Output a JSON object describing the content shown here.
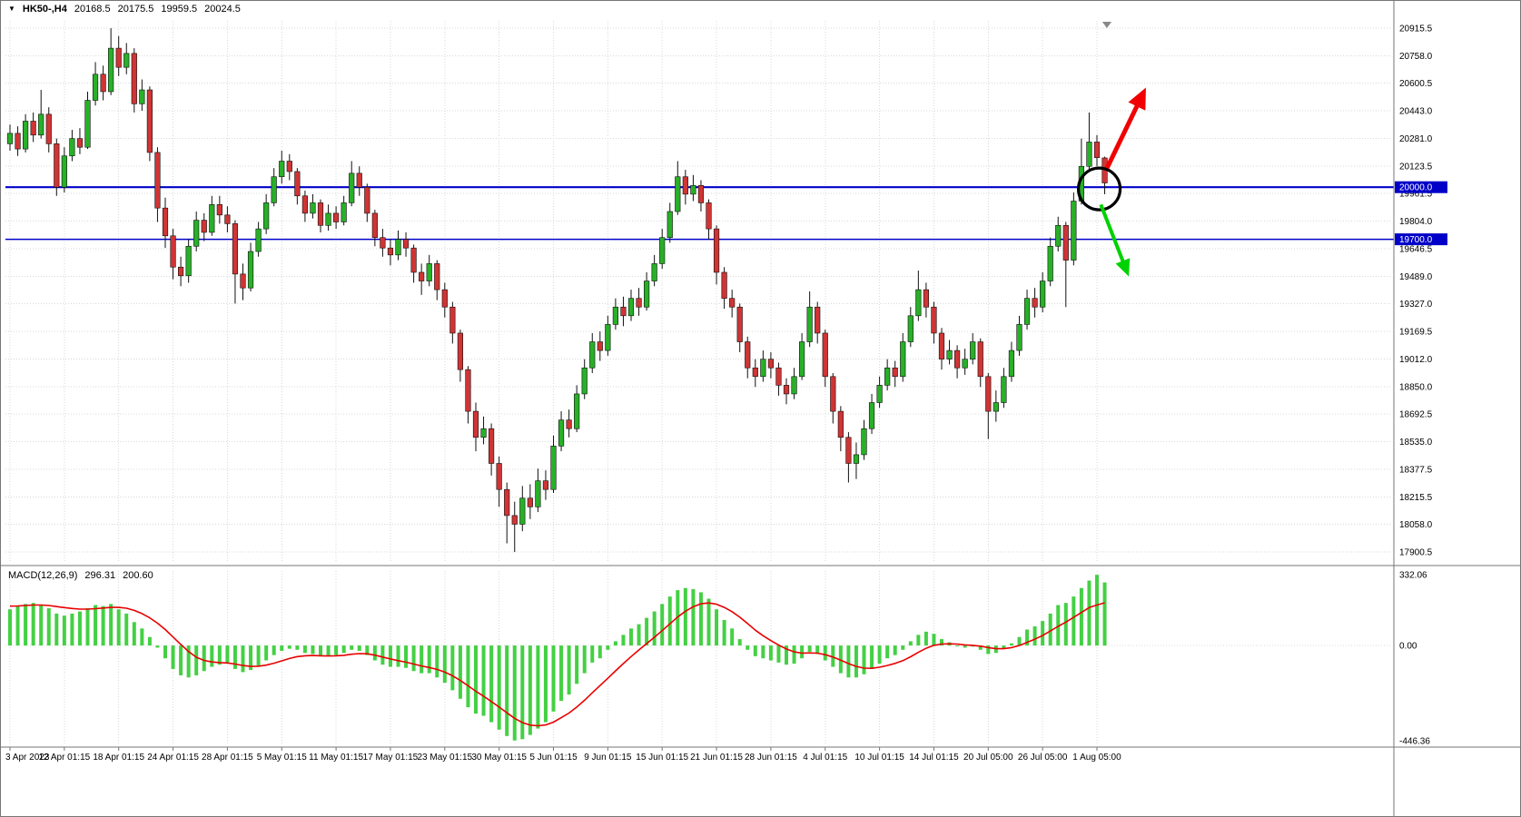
{
  "header": {
    "dropdown_icon": "▼",
    "symbol": "HK50-,H4",
    "open": "20168.5",
    "high": "20175.5",
    "low": "19959.5",
    "close": "20024.5"
  },
  "price_pane": {
    "axis_labels": [
      "20915.5",
      "20758.0",
      "20600.5",
      "20443.0",
      "20281.0",
      "20123.5",
      "19961.5",
      "19804.0",
      "19646.5",
      "19489.0",
      "19327.0",
      "19169.5",
      "19012.0",
      "18850.0",
      "18692.5",
      "18535.0",
      "18377.5",
      "18215.5",
      "18058.0",
      "17900.5"
    ],
    "hlines": [
      {
        "price": 20000.0,
        "label": "20000.0",
        "width": 2.2
      },
      {
        "price": 19700.0,
        "label": "19700.0",
        "width": 1.4
      }
    ]
  },
  "macd_pane": {
    "name": "MACD(12,26,9)",
    "main_value": "296.31",
    "signal_value": "200.60",
    "axis": [
      {
        "value": 332.06,
        "label": "332.06"
      },
      {
        "value": 0,
        "label": "0.00"
      },
      {
        "value": -446.36,
        "label": "-446.36"
      }
    ]
  },
  "time_axis": {
    "labels": [
      {
        "index": 0,
        "text": "3 Apr 2023"
      },
      {
        "index": 7,
        "text": "12 Apr 01:15"
      },
      {
        "index": 14,
        "text": "18 Apr 01:15"
      },
      {
        "index": 21,
        "text": "24 Apr 01:15"
      },
      {
        "index": 28,
        "text": "28 Apr 01:15"
      },
      {
        "index": 35,
        "text": "5 May 01:15"
      },
      {
        "index": 42,
        "text": "11 May 01:15"
      },
      {
        "index": 49,
        "text": "17 May 01:15"
      },
      {
        "index": 56,
        "text": "23 May 01:15"
      },
      {
        "index": 63,
        "text": "30 May 01:15"
      },
      {
        "index": 70,
        "text": "5 Jun 01:15"
      },
      {
        "index": 77,
        "text": "9 Jun 01:15"
      },
      {
        "index": 84,
        "text": "15 Jun 01:15"
      },
      {
        "index": 91,
        "text": "21 Jun 01:15"
      },
      {
        "index": 98,
        "text": "28 Jun 01:15"
      },
      {
        "index": 105,
        "text": "4 Jul 01:15"
      },
      {
        "index": 112,
        "text": "10 Jul 01:15"
      },
      {
        "index": 119,
        "text": "14 Jul 01:15"
      },
      {
        "index": 126,
        "text": "20 Jul 05:00"
      },
      {
        "index": 133,
        "text": "26 Jul 05:00"
      },
      {
        "index": 140,
        "text": "1 Aug 05:00"
      }
    ]
  },
  "colors": {
    "bull": "#28b028",
    "bear": "#d03434",
    "wick": "#111111",
    "grid": "#d9d9d9",
    "hline": "#0000c8",
    "tag_text": "#ffffff",
    "macd_hist": "#44d044",
    "macd_signal": "#e80000",
    "axis_text": "#000000",
    "chrome": "#767676",
    "arrow_up": "#f00000",
    "arrow_down": "#00d200",
    "annotation": "#000000",
    "shift_marker": "#888888"
  },
  "chart_data": {
    "type": "candlestick",
    "symbol": "HK50-,H4",
    "timeframe": "H4",
    "title": "HK50 H4 candlestick chart with MACD(12,26,9), horizontal levels at 20000.0 and 19700.0, breakout circle and up/down scenario arrows",
    "price_range": [
      17860,
      20980
    ],
    "grid": true,
    "candles": [
      [
        20250,
        20360,
        20210,
        20310
      ],
      [
        20310,
        20350,
        20180,
        20220
      ],
      [
        20220,
        20420,
        20200,
        20380
      ],
      [
        20380,
        20430,
        20260,
        20300
      ],
      [
        20300,
        20560,
        20280,
        20420
      ],
      [
        20420,
        20460,
        20200,
        20250
      ],
      [
        20250,
        20280,
        19950,
        20000
      ],
      [
        20000,
        20230,
        19970,
        20180
      ],
      [
        20180,
        20330,
        20150,
        20280
      ],
      [
        20280,
        20340,
        20190,
        20230
      ],
      [
        20230,
        20550,
        20220,
        20500
      ],
      [
        20500,
        20720,
        20470,
        20650
      ],
      [
        20650,
        20700,
        20500,
        20550
      ],
      [
        20550,
        20915,
        20530,
        20800
      ],
      [
        20800,
        20870,
        20640,
        20690
      ],
      [
        20690,
        20830,
        20650,
        20770
      ],
      [
        20770,
        20800,
        20430,
        20480
      ],
      [
        20480,
        20620,
        20440,
        20560
      ],
      [
        20560,
        20580,
        20150,
        20200
      ],
      [
        20200,
        20230,
        19800,
        19880
      ],
      [
        19880,
        19940,
        19650,
        19720
      ],
      [
        19720,
        19760,
        19470,
        19540
      ],
      [
        19540,
        19600,
        19430,
        19490
      ],
      [
        19490,
        19700,
        19450,
        19660
      ],
      [
        19660,
        19860,
        19630,
        19810
      ],
      [
        19810,
        19850,
        19690,
        19740
      ],
      [
        19740,
        19950,
        19720,
        19900
      ],
      [
        19900,
        19950,
        19790,
        19840
      ],
      [
        19840,
        19890,
        19740,
        19790
      ],
      [
        19790,
        19810,
        19330,
        19500
      ],
      [
        19500,
        19560,
        19350,
        19420
      ],
      [
        19420,
        19680,
        19400,
        19630
      ],
      [
        19630,
        19800,
        19600,
        19760
      ],
      [
        19760,
        19960,
        19730,
        19910
      ],
      [
        19910,
        20110,
        19890,
        20060
      ],
      [
        20060,
        20210,
        20020,
        20150
      ],
      [
        20150,
        20190,
        20040,
        20090
      ],
      [
        20090,
        20110,
        19900,
        19950
      ],
      [
        19950,
        19980,
        19800,
        19850
      ],
      [
        19850,
        19960,
        19820,
        19910
      ],
      [
        19910,
        19930,
        19740,
        19780
      ],
      [
        19780,
        19900,
        19750,
        19850
      ],
      [
        19850,
        19890,
        19760,
        19800
      ],
      [
        19800,
        19950,
        19780,
        19910
      ],
      [
        19910,
        20150,
        19890,
        20080
      ],
      [
        20080,
        20120,
        19950,
        20000
      ],
      [
        20000,
        20020,
        19800,
        19850
      ],
      [
        19850,
        19870,
        19660,
        19710
      ],
      [
        19710,
        19760,
        19600,
        19650
      ],
      [
        19650,
        19700,
        19550,
        19610
      ],
      [
        19610,
        19750,
        19580,
        19700
      ],
      [
        19700,
        19740,
        19600,
        19650
      ],
      [
        19650,
        19670,
        19450,
        19510
      ],
      [
        19510,
        19560,
        19380,
        19460
      ],
      [
        19460,
        19610,
        19430,
        19560
      ],
      [
        19560,
        19580,
        19350,
        19410
      ],
      [
        19410,
        19450,
        19250,
        19310
      ],
      [
        19310,
        19340,
        19100,
        19160
      ],
      [
        19160,
        19180,
        18880,
        18950
      ],
      [
        18950,
        18970,
        18640,
        18710
      ],
      [
        18710,
        18760,
        18480,
        18560
      ],
      [
        18560,
        18680,
        18520,
        18610
      ],
      [
        18610,
        18640,
        18340,
        18410
      ],
      [
        18410,
        18450,
        18160,
        18260
      ],
      [
        18260,
        18300,
        17950,
        18110
      ],
      [
        18110,
        18190,
        17900,
        18060
      ],
      [
        18060,
        18280,
        18020,
        18210
      ],
      [
        18210,
        18290,
        18090,
        18160
      ],
      [
        18160,
        18380,
        18130,
        18310
      ],
      [
        18310,
        18370,
        18200,
        18260
      ],
      [
        18260,
        18570,
        18240,
        18510
      ],
      [
        18510,
        18710,
        18480,
        18660
      ],
      [
        18660,
        18720,
        18560,
        18610
      ],
      [
        18610,
        18860,
        18590,
        18810
      ],
      [
        18810,
        19010,
        18780,
        18960
      ],
      [
        18960,
        19160,
        18930,
        19110
      ],
      [
        19110,
        19170,
        19000,
        19060
      ],
      [
        19060,
        19260,
        19030,
        19210
      ],
      [
        19210,
        19360,
        19180,
        19310
      ],
      [
        19310,
        19370,
        19200,
        19260
      ],
      [
        19260,
        19410,
        19230,
        19360
      ],
      [
        19360,
        19420,
        19260,
        19310
      ],
      [
        19310,
        19510,
        19290,
        19460
      ],
      [
        19460,
        19610,
        19430,
        19560
      ],
      [
        19560,
        19760,
        19530,
        19710
      ],
      [
        19710,
        19910,
        19680,
        19860
      ],
      [
        19860,
        20150,
        19840,
        20060
      ],
      [
        20060,
        20100,
        19900,
        19960
      ],
      [
        19960,
        20070,
        19920,
        20010
      ],
      [
        20010,
        20040,
        19860,
        19910
      ],
      [
        19910,
        19930,
        19700,
        19760
      ],
      [
        19760,
        19780,
        19440,
        19510
      ],
      [
        19510,
        19540,
        19300,
        19360
      ],
      [
        19360,
        19410,
        19250,
        19310
      ],
      [
        19310,
        19330,
        19050,
        19110
      ],
      [
        19110,
        19140,
        18900,
        18960
      ],
      [
        18960,
        19010,
        18850,
        18910
      ],
      [
        18910,
        19060,
        18880,
        19010
      ],
      [
        19010,
        19050,
        18900,
        18960
      ],
      [
        18960,
        18990,
        18800,
        18860
      ],
      [
        18860,
        18900,
        18750,
        18810
      ],
      [
        18810,
        18960,
        18780,
        18910
      ],
      [
        18910,
        19160,
        18890,
        19110
      ],
      [
        19110,
        19400,
        19080,
        19310
      ],
      [
        19310,
        19340,
        19100,
        19160
      ],
      [
        19160,
        19180,
        18850,
        18910
      ],
      [
        18910,
        18930,
        18640,
        18710
      ],
      [
        18710,
        18740,
        18480,
        18560
      ],
      [
        18560,
        18590,
        18300,
        18410
      ],
      [
        18410,
        18530,
        18320,
        18460
      ],
      [
        18460,
        18660,
        18430,
        18610
      ],
      [
        18610,
        18810,
        18580,
        18760
      ],
      [
        18760,
        18910,
        18730,
        18860
      ],
      [
        18860,
        19010,
        18830,
        18960
      ],
      [
        18960,
        19000,
        18850,
        18910
      ],
      [
        18910,
        19160,
        18880,
        19110
      ],
      [
        19110,
        19310,
        19080,
        19260
      ],
      [
        19260,
        19520,
        19230,
        19410
      ],
      [
        19410,
        19450,
        19250,
        19310
      ],
      [
        19310,
        19340,
        19100,
        19160
      ],
      [
        19160,
        19190,
        18950,
        19010
      ],
      [
        19010,
        19120,
        18980,
        19060
      ],
      [
        19060,
        19090,
        18900,
        18960
      ],
      [
        18960,
        19070,
        18920,
        19010
      ],
      [
        19010,
        19160,
        18980,
        19110
      ],
      [
        19110,
        19130,
        18850,
        18910
      ],
      [
        18910,
        18930,
        18550,
        18710
      ],
      [
        18710,
        18830,
        18650,
        18760
      ],
      [
        18760,
        18960,
        18730,
        18910
      ],
      [
        18910,
        19110,
        18880,
        19060
      ],
      [
        19060,
        19260,
        19030,
        19210
      ],
      [
        19210,
        19410,
        19180,
        19360
      ],
      [
        19360,
        19420,
        19250,
        19310
      ],
      [
        19310,
        19510,
        19280,
        19460
      ],
      [
        19460,
        19710,
        19430,
        19660
      ],
      [
        19660,
        19830,
        19630,
        19780
      ],
      [
        19780,
        19800,
        19310,
        19580
      ],
      [
        19580,
        19970,
        19550,
        19920
      ],
      [
        19920,
        20280,
        19900,
        20120
      ],
      [
        20120,
        20430,
        20090,
        20260
      ],
      [
        20260,
        20300,
        20120,
        20170
      ],
      [
        20168.5,
        20175.5,
        19959.5,
        20024.5
      ]
    ],
    "indicator": {
      "type": "macd",
      "params": "12,26,9",
      "range": [
        -446.36,
        332.06
      ],
      "histogram": [
        170,
        185,
        195,
        200,
        190,
        175,
        150,
        140,
        150,
        160,
        175,
        190,
        185,
        195,
        170,
        150,
        110,
        80,
        40,
        -10,
        -60,
        -110,
        -140,
        -150,
        -140,
        -120,
        -100,
        -90,
        -85,
        -110,
        -125,
        -115,
        -95,
        -70,
        -45,
        -25,
        -15,
        -20,
        -35,
        -40,
        -50,
        -50,
        -45,
        -35,
        -20,
        -25,
        -45,
        -70,
        -90,
        -100,
        -100,
        -105,
        -120,
        -130,
        -130,
        -150,
        -175,
        -210,
        -250,
        -290,
        -320,
        -330,
        -360,
        -395,
        -425,
        -446,
        -440,
        -420,
        -390,
        -360,
        -310,
        -260,
        -230,
        -180,
        -130,
        -80,
        -60,
        -20,
        20,
        50,
        80,
        100,
        130,
        160,
        195,
        230,
        260,
        270,
        265,
        250,
        220,
        170,
        120,
        80,
        30,
        -20,
        -50,
        -60,
        -70,
        -80,
        -90,
        -85,
        -60,
        -30,
        -40,
        -70,
        -100,
        -130,
        -150,
        -150,
        -135,
        -110,
        -85,
        -60,
        -45,
        -20,
        20,
        50,
        65,
        55,
        30,
        15,
        0,
        -10,
        -5,
        -20,
        -40,
        -35,
        -15,
        10,
        40,
        75,
        90,
        115,
        150,
        190,
        200,
        230,
        270,
        305,
        332.06,
        296.31
      ],
      "signal": [
        185,
        186,
        188,
        190,
        190,
        188,
        183,
        178,
        174,
        171,
        171,
        173,
        176,
        179,
        179,
        175,
        165,
        150,
        130,
        105,
        75,
        40,
        5,
        -28,
        -55,
        -70,
        -77,
        -80,
        -82,
        -87,
        -94,
        -98,
        -97,
        -92,
        -83,
        -72,
        -61,
        -52,
        -48,
        -47,
        -48,
        -49,
        -48,
        -46,
        -41,
        -38,
        -39,
        -45,
        -54,
        -63,
        -71,
        -78,
        -87,
        -96,
        -103,
        -112,
        -125,
        -142,
        -164,
        -189,
        -215,
        -238,
        -263,
        -289,
        -316,
        -342,
        -362,
        -374,
        -377,
        -373,
        -360,
        -339,
        -317,
        -289,
        -257,
        -222,
        -188,
        -154,
        -119,
        -85,
        -52,
        -21,
        9,
        39,
        70,
        102,
        134,
        161,
        182,
        196,
        200,
        194,
        179,
        159,
        133,
        103,
        72,
        46,
        23,
        2,
        -16,
        -30,
        -36,
        -35,
        -36,
        -43,
        -54,
        -69,
        -85,
        -98,
        -106,
        -107,
        -102,
        -94,
        -84,
        -71,
        -53,
        -32,
        -13,
        1,
        7,
        8,
        7,
        3,
        1,
        -3,
        -10,
        -15,
        -15,
        -10,
        0,
        15,
        30,
        47,
        68,
        90,
        110,
        132,
        155,
        178,
        190,
        200.6
      ]
    },
    "annotations": {
      "breakout_circle": {
        "index": 140.3,
        "price": 19990,
        "radius": 23
      },
      "arrows": [
        {
          "name": "red-up-arrow",
          "direction": "up",
          "from": {
            "index": 141.3,
            "price": 20110
          },
          "to": {
            "index": 146.0,
            "price": 20545
          },
          "width": 5
        },
        {
          "name": "green-down-arrow",
          "direction": "down",
          "from": {
            "index": 140.5,
            "price": 19900
          },
          "to": {
            "index": 143.9,
            "price": 19510
          },
          "width": 4
        }
      ]
    }
  }
}
